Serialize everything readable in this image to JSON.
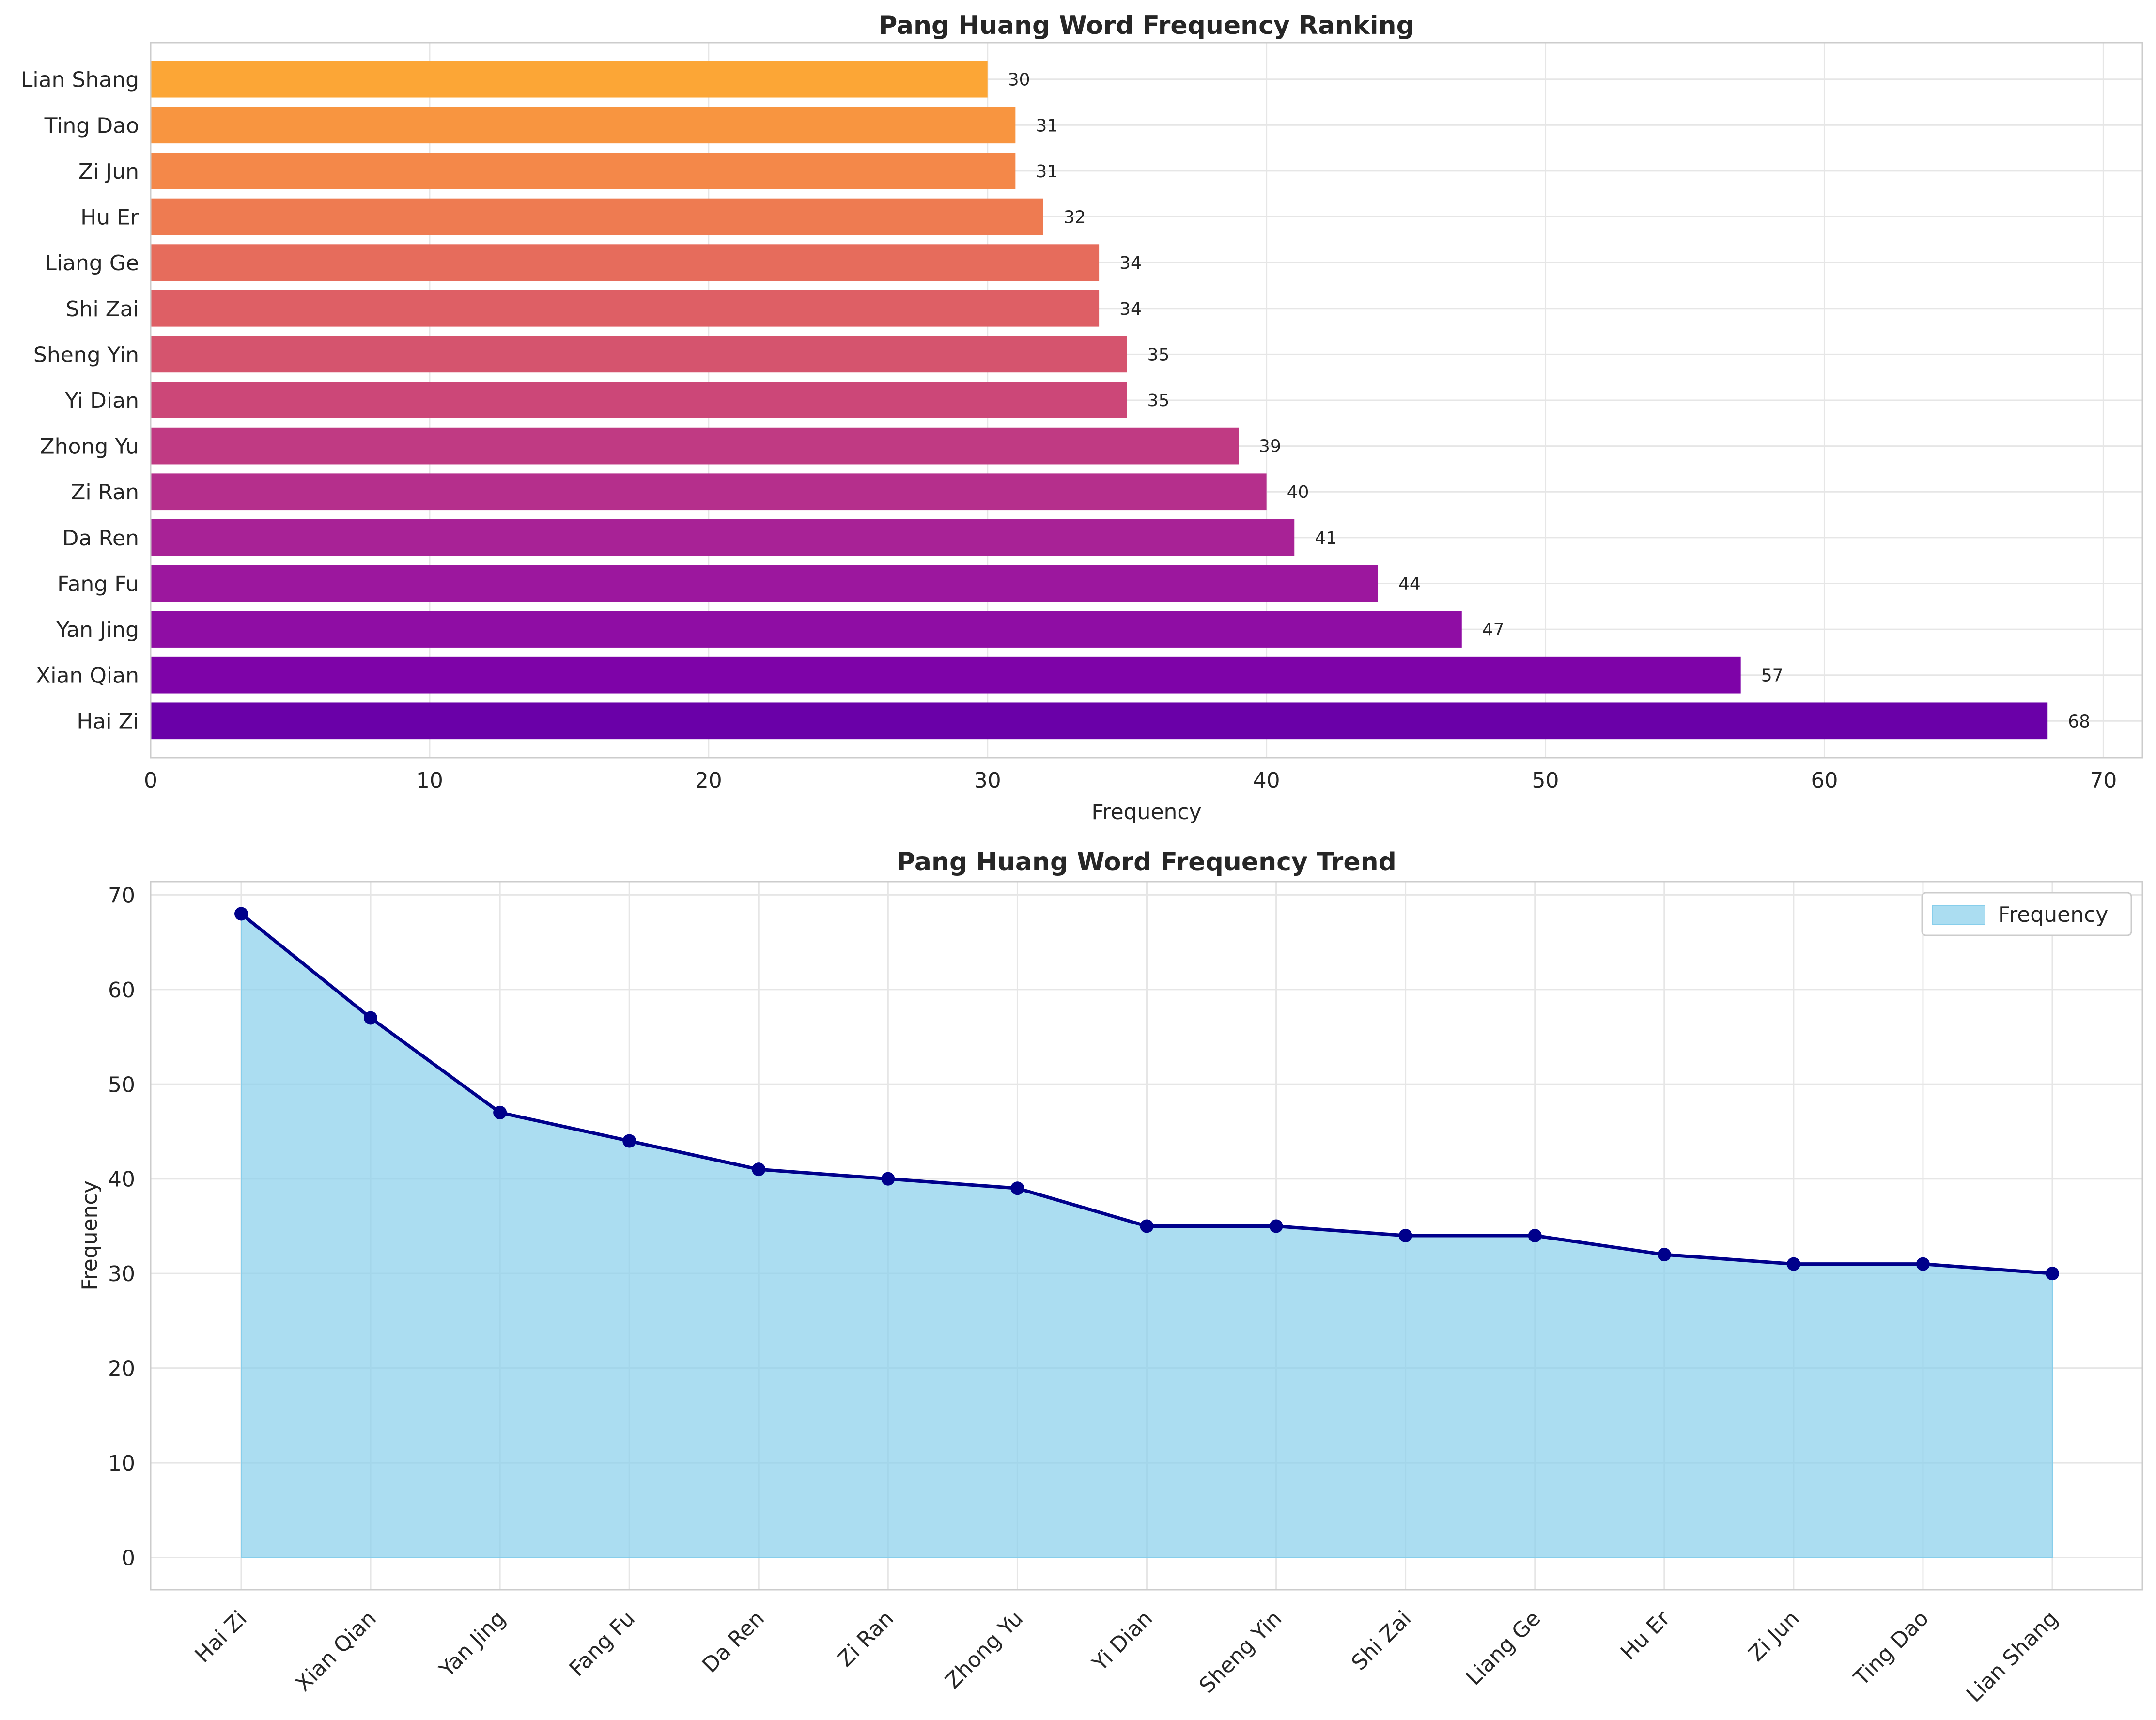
{
  "chart_data": [
    {
      "type": "bar",
      "orientation": "horizontal",
      "title": "Pang Huang Word Frequency Ranking",
      "xlabel": "Frequency",
      "ylabel": "",
      "categories": [
        "Hai Zi",
        "Xian Qian",
        "Yan Jing",
        "Fang Fu",
        "Da Ren",
        "Zi Ran",
        "Zhong Yu",
        "Yi Dian",
        "Sheng Yin",
        "Shi Zai",
        "Liang Ge",
        "Hu Er",
        "Zi Jun",
        "Ting Dao",
        "Lian Shang"
      ],
      "values": [
        68,
        57,
        47,
        44,
        41,
        40,
        39,
        35,
        35,
        34,
        34,
        32,
        31,
        31,
        30
      ],
      "xlim": [
        0,
        71.4
      ],
      "xticks": [
        0,
        10,
        20,
        30,
        40,
        50,
        60,
        70
      ],
      "grid": true,
      "colors": [
        "#6a00a8",
        "#7e03a8",
        "#8f0da4",
        "#9c179e",
        "#a82296",
        "#b52f8c",
        "#c03a83",
        "#cc4778",
        "#d5546e",
        "#de5f65",
        "#e66c5c",
        "#ee7b51",
        "#f48849",
        "#f89540",
        "#fca636"
      ]
    },
    {
      "type": "area",
      "title": "Pang Huang Word Frequency Trend",
      "xlabel": "",
      "ylabel": "Frequency",
      "categories": [
        "Hai Zi",
        "Xian Qian",
        "Yan Jing",
        "Fang Fu",
        "Da Ren",
        "Zi Ran",
        "Zhong Yu",
        "Yi Dian",
        "Sheng Yin",
        "Shi Zai",
        "Liang Ge",
        "Hu Er",
        "Zi Jun",
        "Ting Dao",
        "Lian Shang"
      ],
      "values": [
        68,
        57,
        47,
        44,
        41,
        40,
        39,
        35,
        35,
        34,
        34,
        32,
        31,
        31,
        30
      ],
      "ylim": [
        -3.4,
        71.4
      ],
      "yticks": [
        0,
        10,
        20,
        30,
        40,
        50,
        60,
        70
      ],
      "grid": true,
      "legend": {
        "position": "top-right",
        "entries": [
          "Frequency"
        ]
      },
      "fill_color": "#87ceeb",
      "line_color": "#00008b"
    }
  ]
}
